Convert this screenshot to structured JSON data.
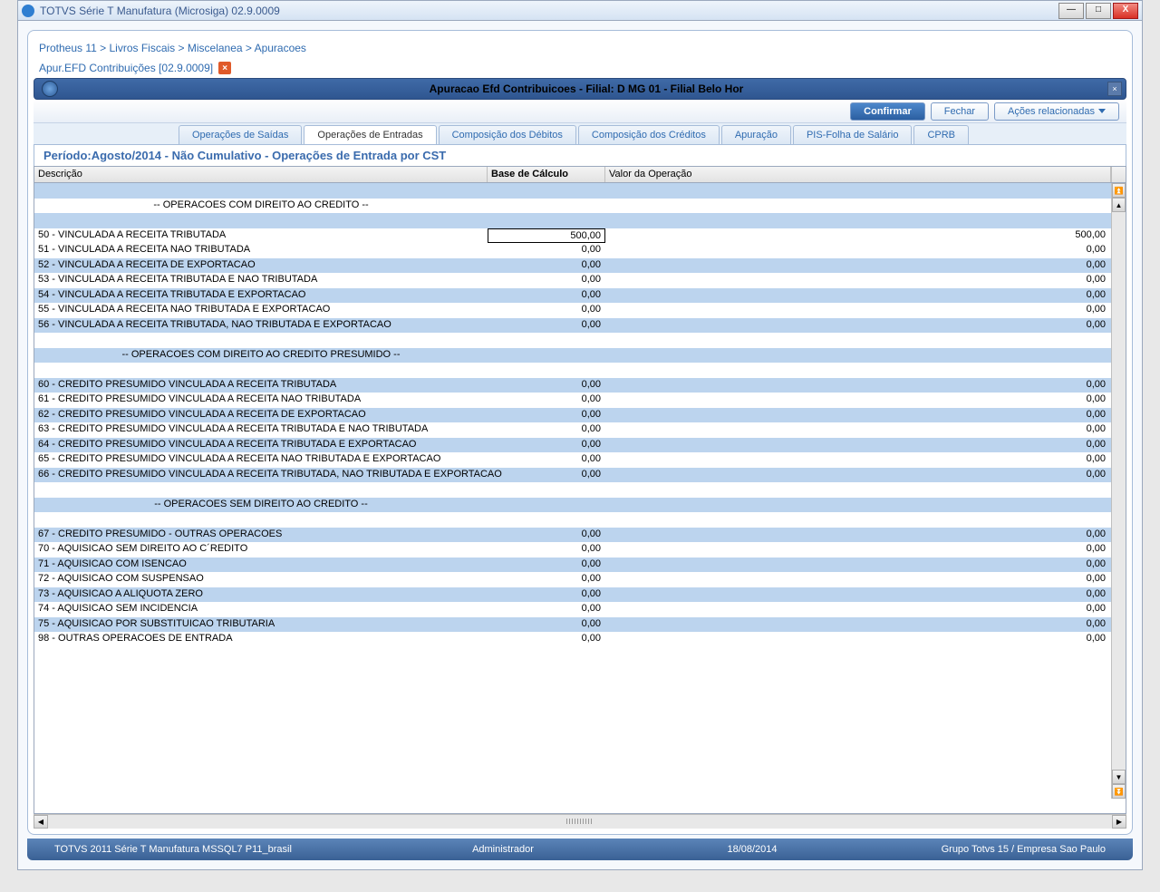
{
  "window": {
    "title": "TOTVS Série T Manufatura (Microsiga) 02.9.0009"
  },
  "breadcrumb": "Protheus 11 > Livros Fiscais > Miscelanea > Apuracoes",
  "open_tab": {
    "label": "Apur.EFD Contribuições [02.9.0009]"
  },
  "panel": {
    "title": "Apuracao Efd Contribuicoes - Filial: D MG 01  - Filial Belo Hor"
  },
  "actions": {
    "confirm": "Confirmar",
    "close": "Fechar",
    "related": "Ações relacionadas"
  },
  "tabs": [
    "Operações de Saídas",
    "Operações de Entradas",
    "Composição dos Débitos",
    "Composição dos Créditos",
    "Apuração",
    "PIS-Folha de Salário",
    "CPRB"
  ],
  "active_tab_index": 1,
  "subtitle": "Período:Agosto/2014 - Não Cumulativo - Operações de Entrada por CST",
  "columns": {
    "desc": "Descrição",
    "base": "Base de Cálculo",
    "valor": "Valor da Operação"
  },
  "rows": [
    {
      "type": "blank",
      "color": "blue"
    },
    {
      "type": "section",
      "color": "white",
      "desc": "-- OPERACOES COM DIREITO AO CREDITO --"
    },
    {
      "type": "blank",
      "color": "blue"
    },
    {
      "type": "data",
      "color": "white",
      "desc": "50 - VINCULADA A RECEITA TRIBUTADA",
      "base": "500,00",
      "valor": "500,00",
      "selected": true
    },
    {
      "type": "data",
      "color": "white",
      "desc": "51 - VINCULADA A RECEITA NAO TRIBUTADA",
      "base": "0,00",
      "valor": "0,00"
    },
    {
      "type": "data",
      "color": "blue",
      "desc": "52 - VINCULADA A RECEITA DE EXPORTACAO",
      "base": "0,00",
      "valor": "0,00"
    },
    {
      "type": "data",
      "color": "white",
      "desc": "53 - VINCULADA A RECEITA TRIBUTADA E NAO TRIBUTADA",
      "base": "0,00",
      "valor": "0,00"
    },
    {
      "type": "data",
      "color": "blue",
      "desc": "54 - VINCULADA A RECEITA TRIBUTADA E EXPORTACAO",
      "base": "0,00",
      "valor": "0,00"
    },
    {
      "type": "data",
      "color": "white",
      "desc": "55 - VINCULADA A RECEITA NAO TRIBUTADA E EXPORTACAO",
      "base": "0,00",
      "valor": "0,00"
    },
    {
      "type": "data",
      "color": "blue",
      "desc": "56 - VINCULADA A RECEITA TRIBUTADA, NAO TRIBUTADA E EXPORTACAO",
      "base": "0,00",
      "valor": "0,00"
    },
    {
      "type": "blank",
      "color": "white"
    },
    {
      "type": "section",
      "color": "blue",
      "desc": "-- OPERACOES COM DIREITO AO CREDITO PRESUMIDO --"
    },
    {
      "type": "blank",
      "color": "white"
    },
    {
      "type": "data",
      "color": "blue",
      "desc": "60 - CREDITO PRESUMIDO VINCULADA A RECEITA TRIBUTADA",
      "base": "0,00",
      "valor": "0,00"
    },
    {
      "type": "data",
      "color": "white",
      "desc": "61 - CREDITO PRESUMIDO VINCULADA A RECEITA NAO TRIBUTADA",
      "base": "0,00",
      "valor": "0,00"
    },
    {
      "type": "data",
      "color": "blue",
      "desc": "62 - CREDITO PRESUMIDO VINCULADA A RECEITA DE EXPORTACAO",
      "base": "0,00",
      "valor": "0,00"
    },
    {
      "type": "data",
      "color": "white",
      "desc": "63 - CREDITO PRESUMIDO VINCULADA A RECEITA TRIBUTADA E NAO TRIBUTADA",
      "base": "0,00",
      "valor": "0,00"
    },
    {
      "type": "data",
      "color": "blue",
      "desc": "64 - CREDITO PRESUMIDO VINCULADA A RECEITA TRIBUTADA E EXPORTACAO",
      "base": "0,00",
      "valor": "0,00"
    },
    {
      "type": "data",
      "color": "white",
      "desc": "65 - CREDITO PRESUMIDO VINCULADA A RECEITA NAO TRIBUTADA E EXPORTACAO",
      "base": "0,00",
      "valor": "0,00"
    },
    {
      "type": "data",
      "color": "blue",
      "desc": "66 - CREDITO PRESUMIDO VINCULADA A RECEITA TRIBUTADA, NAO TRIBUTADA E EXPORTACAO",
      "base": "0,00",
      "valor": "0,00"
    },
    {
      "type": "blank",
      "color": "white"
    },
    {
      "type": "section",
      "color": "blue",
      "desc": "-- OPERACOES SEM DIREITO AO CREDITO --"
    },
    {
      "type": "blank",
      "color": "white"
    },
    {
      "type": "data",
      "color": "blue",
      "desc": "67 - CREDITO PRESUMIDO - OUTRAS OPERACOES",
      "base": "0,00",
      "valor": "0,00"
    },
    {
      "type": "data",
      "color": "white",
      "desc": "70 - AQUISICAO SEM DIREITO AO C´REDITO",
      "base": "0,00",
      "valor": "0,00"
    },
    {
      "type": "data",
      "color": "blue",
      "desc": "71 - AQUISICAO COM ISENCAO",
      "base": "0,00",
      "valor": "0,00"
    },
    {
      "type": "data",
      "color": "white",
      "desc": "72 - AQUISICAO COM SUSPENSAO",
      "base": "0,00",
      "valor": "0,00"
    },
    {
      "type": "data",
      "color": "blue",
      "desc": "73 - AQUISICAO A ALIQUOTA ZERO",
      "base": "0,00",
      "valor": "0,00"
    },
    {
      "type": "data",
      "color": "white",
      "desc": "74 - AQUISICAO SEM INCIDENCIA",
      "base": "0,00",
      "valor": "0,00"
    },
    {
      "type": "data",
      "color": "blue",
      "desc": "75 - AQUISICAO POR SUBSTITUICAO TRIBUTARIA",
      "base": "0,00",
      "valor": "0,00"
    },
    {
      "type": "data",
      "color": "white",
      "desc": "98 - OUTRAS OPERACOES DE ENTRADA",
      "base": "0,00",
      "valor": "0,00"
    }
  ],
  "status": {
    "app": "TOTVS 2011 Série T Manufatura MSSQL7 P11_brasil",
    "user": "Administrador",
    "date": "18/08/2014",
    "company": "Grupo Totvs 15 / Empresa Sao Paulo"
  }
}
